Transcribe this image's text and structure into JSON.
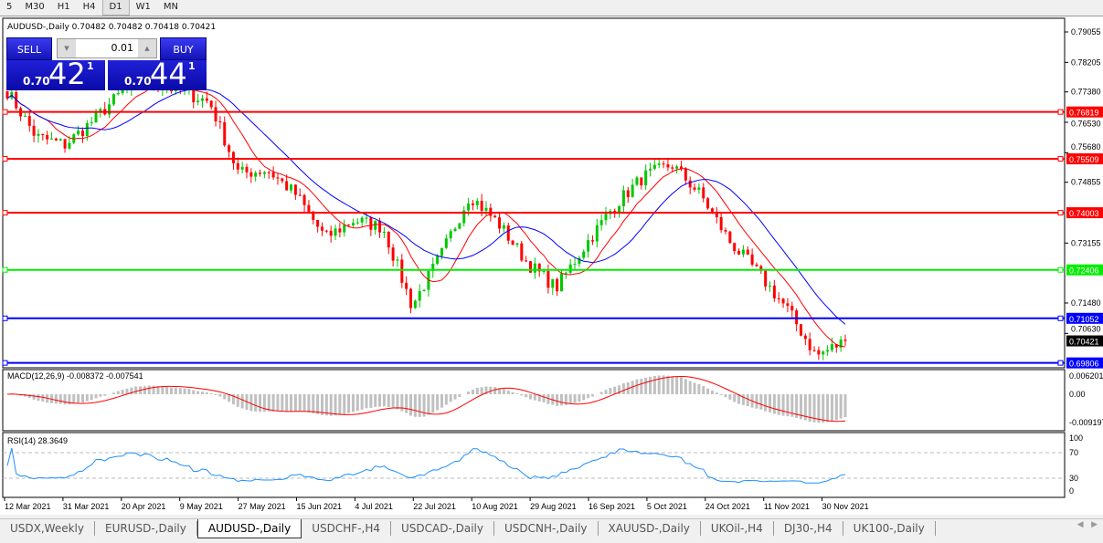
{
  "toolbar": {
    "timeframes": [
      "5",
      "M30",
      "H1",
      "H4",
      "D1",
      "W1",
      "MN"
    ],
    "active": "D1"
  },
  "chart": {
    "title": "AUDUSD-,Daily  0.70482 0.70482 0.70418 0.70421",
    "current_price": "0.70421",
    "price_axis": [
      "0.79055",
      "0.78205",
      "0.77380",
      "0.76530",
      "0.75680",
      "0.74855",
      "0.73155",
      "0.71480",
      "0.70630"
    ],
    "price_range": [
      0.69806,
      0.79055
    ],
    "levels": [
      {
        "price": 0.76819,
        "label": "0.76819",
        "color": "#ff0000"
      },
      {
        "price": 0.75509,
        "label": "0.75509",
        "color": "#ff0000"
      },
      {
        "price": 0.74003,
        "label": "0.74003",
        "color": "#ff0000"
      },
      {
        "price": 0.72406,
        "label": "0.72406",
        "color": "#00ee00"
      },
      {
        "price": 0.71052,
        "label": "0.71052",
        "color": "#0000ff"
      },
      {
        "price": 0.69806,
        "label": "0.69806",
        "color": "#0000ff"
      }
    ],
    "close_path": [
      0.774,
      0.7612,
      0.759,
      0.766,
      0.774,
      0.7765,
      0.774,
      0.771,
      0.751,
      0.752,
      0.745,
      0.733,
      0.738,
      0.736,
      0.714,
      0.728,
      0.745,
      0.737,
      0.726,
      0.719,
      0.731,
      0.742,
      0.75,
      0.7535,
      0.745,
      0.732,
      0.723,
      0.713,
      0.7,
      0.7042
    ],
    "bull_color": "#00c800",
    "bear_color": "#ff0000",
    "ma_fast_color": "#ff0000",
    "ma_slow_color": "#0000ff",
    "dates": [
      "12 Mar 2021",
      "31 Mar 2021",
      "20 Apr 2021",
      "9 May 2021",
      "27 May 2021",
      "15 Jun 2021",
      "4 Jul 2021",
      "22 Jul 2021",
      "10 Aug 2021",
      "29 Aug 2021",
      "16 Sep 2021",
      "5 Oct 2021",
      "24 Oct 2021",
      "11 Nov 2021",
      "30 Nov 2021"
    ]
  },
  "trade": {
    "sell": "SELL",
    "buy": "BUY",
    "lot": "0.01",
    "sell_big": "0.70",
    "sell_main": "42",
    "sell_sup": "1",
    "buy_big": "0.70",
    "buy_main": "44",
    "buy_sup": "1"
  },
  "macd": {
    "label": "MACD(12,26,9) -0.008372 -0.007541",
    "axis": [
      "0.006201",
      "0.00",
      "-0.009197"
    ]
  },
  "rsi": {
    "label": "RSI(14) 28.3649",
    "axis": [
      "100",
      "70",
      "30",
      "0"
    ]
  },
  "tabs": [
    "USDX,Weekly",
    "EURUSD-,Daily",
    "AUDUSD-,Daily",
    "USDCHF-,H4",
    "USDCAD-,Daily",
    "USDCNH-,Daily",
    "XAUUSD-,Daily",
    "UKOil-,H4",
    "DJ30-,H4",
    "UK100-,Daily"
  ],
  "active_tab": "AUDUSD-,Daily"
}
